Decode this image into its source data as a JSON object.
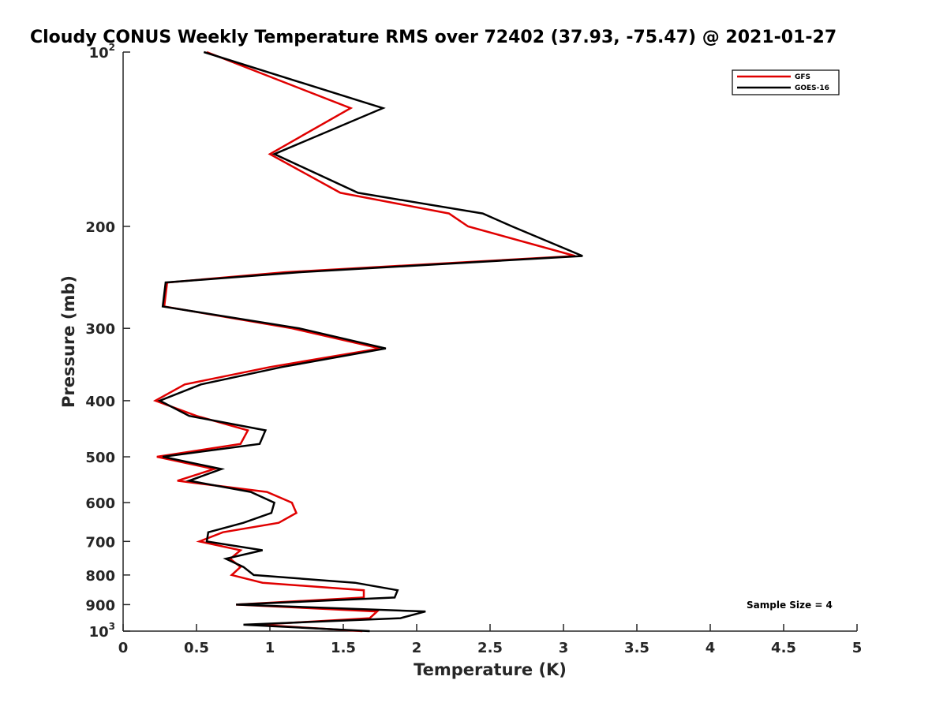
{
  "chart_data": {
    "type": "line",
    "title": "Cloudy CONUS Weekly Temperature RMS over 72402 (37.93, -75.47) @ 2021-01-27",
    "xlabel": "Temperature (K)",
    "ylabel": "Pressure (mb)",
    "xlim": [
      0,
      5
    ],
    "ylim": [
      100,
      1000
    ],
    "y_scale": "log",
    "y_reversed": true,
    "x_ticks": [
      "0",
      "0.5",
      "1",
      "1.5",
      "2",
      "2.5",
      "3",
      "3.5",
      "4",
      "4.5",
      "5"
    ],
    "x_tick_values": [
      0,
      0.5,
      1,
      1.5,
      2,
      2.5,
      3,
      3.5,
      4,
      4.5,
      5
    ],
    "y_ticks": [
      {
        "value": 100,
        "base": "10",
        "exp": "2"
      },
      {
        "value": 200,
        "label": "200"
      },
      {
        "value": 300,
        "label": "300"
      },
      {
        "value": 400,
        "label": "400"
      },
      {
        "value": 500,
        "label": "500"
      },
      {
        "value": 600,
        "label": "600"
      },
      {
        "value": 700,
        "label": "700"
      },
      {
        "value": 800,
        "label": "800"
      },
      {
        "value": 900,
        "label": "900"
      },
      {
        "value": 1000,
        "base": "10",
        "exp": "3"
      }
    ],
    "legend_position": "top-right",
    "grid": false,
    "series": [
      {
        "name": "GFS",
        "color": "#e00000",
        "points": [
          [
            0.57,
            100
          ],
          [
            1.55,
            125
          ],
          [
            1.0,
            150
          ],
          [
            1.48,
            175
          ],
          [
            2.22,
            190
          ],
          [
            2.35,
            200
          ],
          [
            3.08,
            225
          ],
          [
            1.1,
            240
          ],
          [
            0.3,
            250
          ],
          [
            0.28,
            275
          ],
          [
            1.15,
            300
          ],
          [
            1.75,
            325
          ],
          [
            1.0,
            350
          ],
          [
            0.42,
            375
          ],
          [
            0.22,
            400
          ],
          [
            0.5,
            425
          ],
          [
            0.85,
            450
          ],
          [
            0.8,
            475
          ],
          [
            0.23,
            500
          ],
          [
            0.62,
            525
          ],
          [
            0.37,
            550
          ],
          [
            0.98,
            575
          ],
          [
            1.15,
            600
          ],
          [
            1.18,
            625
          ],
          [
            1.06,
            650
          ],
          [
            0.68,
            675
          ],
          [
            0.52,
            700
          ],
          [
            0.8,
            725
          ],
          [
            0.73,
            750
          ],
          [
            0.8,
            775
          ],
          [
            0.74,
            800
          ],
          [
            0.95,
            825
          ],
          [
            1.64,
            850
          ],
          [
            1.64,
            875
          ],
          [
            0.77,
            900
          ],
          [
            1.73,
            925
          ],
          [
            1.68,
            950
          ],
          [
            0.92,
            975
          ],
          [
            1.63,
            1000
          ]
        ]
      },
      {
        "name": "GOES-16",
        "color": "#000000",
        "points": [
          [
            0.55,
            100
          ],
          [
            1.77,
            125
          ],
          [
            1.03,
            150
          ],
          [
            1.6,
            175
          ],
          [
            2.45,
            190
          ],
          [
            2.65,
            200
          ],
          [
            3.13,
            225
          ],
          [
            1.2,
            240
          ],
          [
            0.29,
            250
          ],
          [
            0.27,
            275
          ],
          [
            1.2,
            300
          ],
          [
            1.79,
            325
          ],
          [
            1.08,
            350
          ],
          [
            0.53,
            375
          ],
          [
            0.25,
            400
          ],
          [
            0.45,
            425
          ],
          [
            0.97,
            450
          ],
          [
            0.93,
            475
          ],
          [
            0.27,
            500
          ],
          [
            0.67,
            525
          ],
          [
            0.45,
            550
          ],
          [
            0.87,
            575
          ],
          [
            1.03,
            600
          ],
          [
            1.01,
            625
          ],
          [
            0.82,
            650
          ],
          [
            0.58,
            675
          ],
          [
            0.57,
            700
          ],
          [
            0.95,
            725
          ],
          [
            0.7,
            750
          ],
          [
            0.82,
            775
          ],
          [
            0.89,
            800
          ],
          [
            1.58,
            825
          ],
          [
            1.87,
            850
          ],
          [
            1.85,
            875
          ],
          [
            0.77,
            900
          ],
          [
            2.06,
            925
          ],
          [
            1.89,
            950
          ],
          [
            0.82,
            975
          ],
          [
            1.68,
            1000
          ]
        ]
      }
    ],
    "annotation": "Sample Size = 4"
  }
}
